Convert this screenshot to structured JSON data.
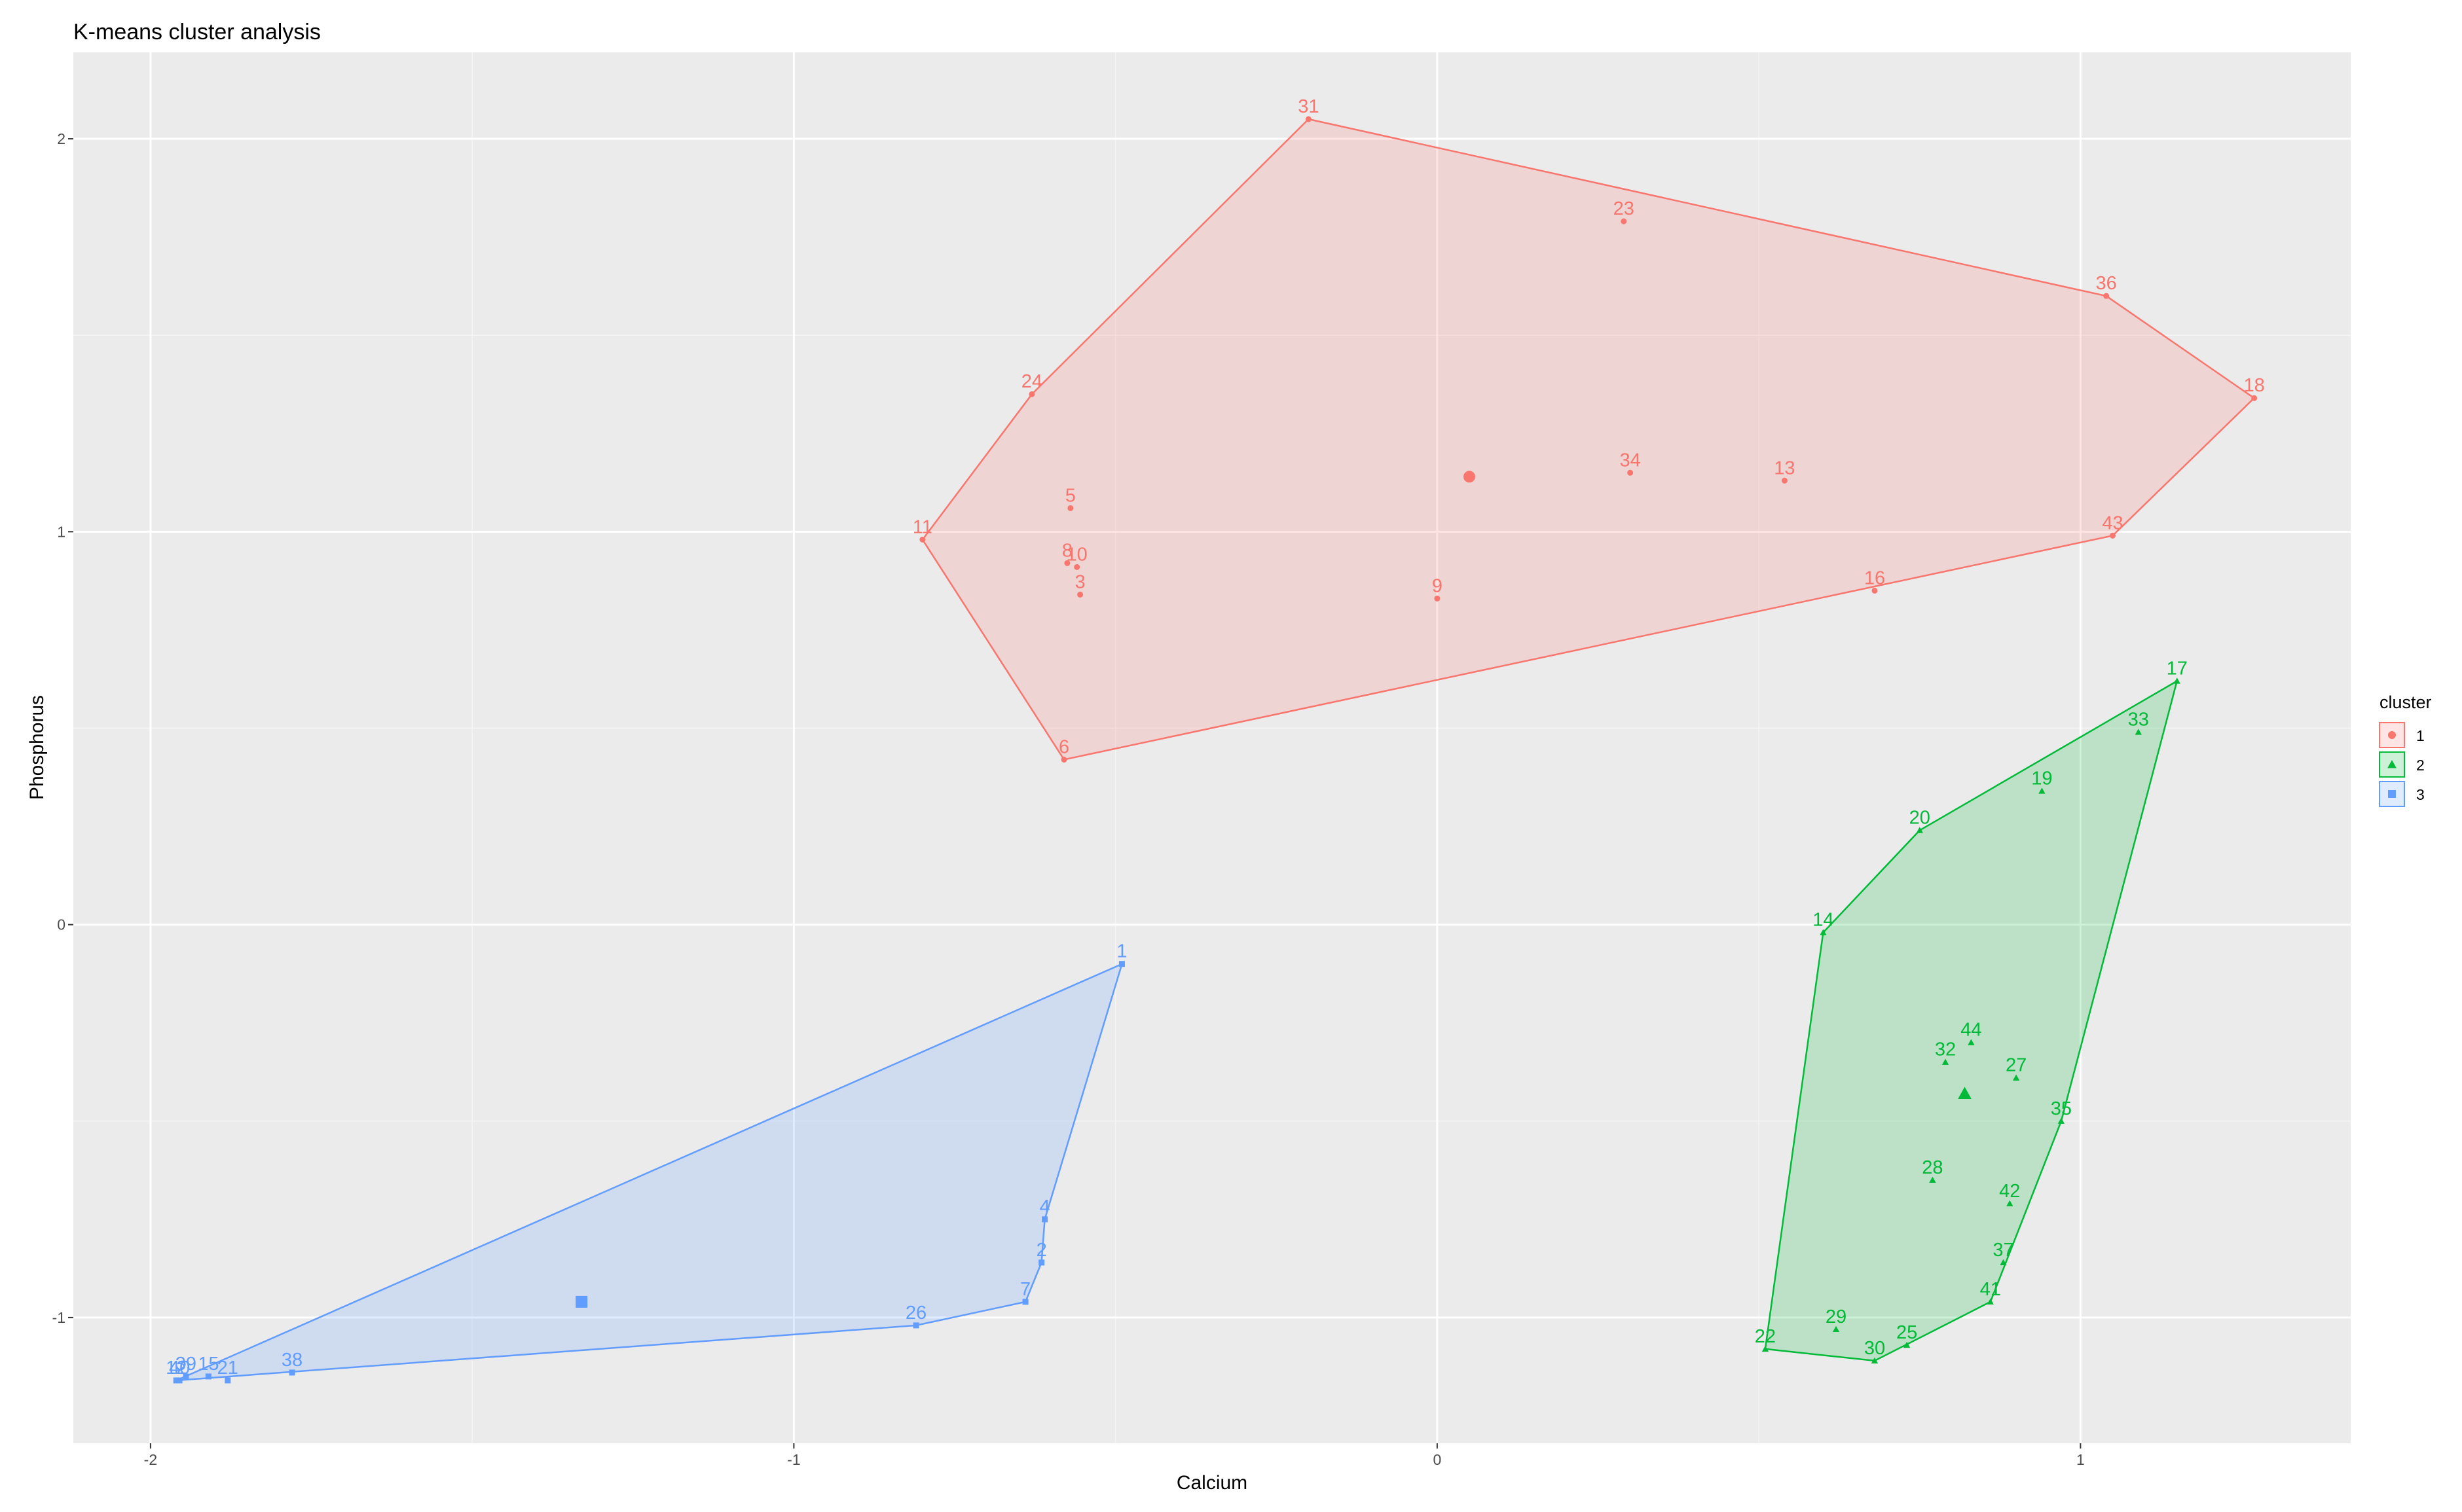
{
  "chart_data": {
    "type": "scatter",
    "title": "K-means cluster analysis",
    "xlabel": "Calcium",
    "ylabel": "Phosphorus",
    "xlim": [
      -2.12,
      1.42
    ],
    "ylim": [
      -1.32,
      2.22
    ],
    "x_ticks": [
      -2,
      -1,
      0,
      1
    ],
    "y_ticks": [
      -1,
      0,
      1,
      2
    ],
    "x_tick_labels": [
      "-2",
      "-1",
      "0",
      "1"
    ],
    "y_tick_labels": [
      "-1",
      "0",
      "1",
      "2"
    ],
    "grid": true,
    "legend": {
      "title": "cluster",
      "placement": "right",
      "entries": [
        "1",
        "2",
        "3"
      ]
    },
    "colors": {
      "panel": "#ebebeb",
      "grid_major": "#ffffff",
      "grid_minor": "#f5f5f5",
      "1": "#f8766d",
      "2": "#00ba38",
      "3": "#619cff"
    },
    "clusters": [
      {
        "name": "1",
        "shape": "circle",
        "center": {
          "x": 0.05,
          "y": 1.14
        },
        "points": [
          {
            "label": "31",
            "x": -0.2,
            "y": 2.05
          },
          {
            "label": "23",
            "x": 0.29,
            "y": 1.79
          },
          {
            "label": "36",
            "x": 1.04,
            "y": 1.6
          },
          {
            "label": "18",
            "x": 1.27,
            "y": 1.34
          },
          {
            "label": "24",
            "x": -0.63,
            "y": 1.35
          },
          {
            "label": "34",
            "x": 0.3,
            "y": 1.15
          },
          {
            "label": "13",
            "x": 0.54,
            "y": 1.13
          },
          {
            "label": "5",
            "x": -0.57,
            "y": 1.06
          },
          {
            "label": "11",
            "x": -0.8,
            "y": 0.98
          },
          {
            "label": "43",
            "x": 1.05,
            "y": 0.99
          },
          {
            "label": "8",
            "x": -0.575,
            "y": 0.92
          },
          {
            "label": "10",
            "x": -0.56,
            "y": 0.91
          },
          {
            "label": "3",
            "x": -0.555,
            "y": 0.84
          },
          {
            "label": "9",
            "x": 0.0,
            "y": 0.83
          },
          {
            "label": "16",
            "x": 0.68,
            "y": 0.85
          },
          {
            "label": "6",
            "x": -0.58,
            "y": 0.42
          }
        ],
        "hull": [
          "31",
          "36",
          "18",
          "43",
          "6",
          "11",
          "24"
        ]
      },
      {
        "name": "2",
        "shape": "triangle",
        "center": {
          "x": 0.82,
          "y": -0.43
        },
        "points": [
          {
            "label": "17",
            "x": 1.15,
            "y": 0.62
          },
          {
            "label": "33",
            "x": 1.09,
            "y": 0.49
          },
          {
            "label": "19",
            "x": 0.94,
            "y": 0.34
          },
          {
            "label": "20",
            "x": 0.75,
            "y": 0.24
          },
          {
            "label": "14",
            "x": 0.6,
            "y": -0.02
          },
          {
            "label": "44",
            "x": 0.83,
            "y": -0.3
          },
          {
            "label": "32",
            "x": 0.79,
            "y": -0.35
          },
          {
            "label": "27",
            "x": 0.9,
            "y": -0.39
          },
          {
            "label": "35",
            "x": 0.97,
            "y": -0.5
          },
          {
            "label": "28",
            "x": 0.77,
            "y": -0.65
          },
          {
            "label": "42",
            "x": 0.89,
            "y": -0.71
          },
          {
            "label": "37",
            "x": 0.88,
            "y": -0.86
          },
          {
            "label": "41",
            "x": 0.86,
            "y": -0.96
          },
          {
            "label": "22",
            "x": 0.51,
            "y": -1.08
          },
          {
            "label": "29",
            "x": 0.62,
            "y": -1.03
          },
          {
            "label": "25",
            "x": 0.73,
            "y": -1.07
          },
          {
            "label": "30",
            "x": 0.68,
            "y": -1.11
          }
        ],
        "hull": [
          "17",
          "35",
          "41",
          "30",
          "22",
          "14",
          "20"
        ]
      },
      {
        "name": "3",
        "shape": "square",
        "center": {
          "x": -1.33,
          "y": -0.96
        },
        "points": [
          {
            "label": "1",
            "x": -0.49,
            "y": -0.1
          },
          {
            "label": "4",
            "x": -0.61,
            "y": -0.75
          },
          {
            "label": "2",
            "x": -0.615,
            "y": -0.86
          },
          {
            "label": "7",
            "x": -0.64,
            "y": -0.96
          },
          {
            "label": "26",
            "x": -0.81,
            "y": -1.02
          },
          {
            "label": "38",
            "x": -1.78,
            "y": -1.14
          },
          {
            "label": "21",
            "x": -1.88,
            "y": -1.16
          },
          {
            "label": "15",
            "x": -1.91,
            "y": -1.15
          },
          {
            "label": "39",
            "x": -1.945,
            "y": -1.15
          },
          {
            "label": "40",
            "x": -1.955,
            "y": -1.16
          },
          {
            "label": "12",
            "x": -1.96,
            "y": -1.16
          }
        ],
        "hull": [
          "1",
          "4",
          "2",
          "7",
          "26",
          "12"
        ]
      }
    ]
  }
}
